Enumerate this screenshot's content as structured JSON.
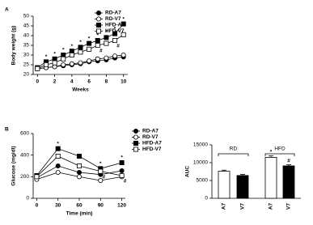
{
  "chart_data": [
    {
      "type": "line",
      "panel": "A",
      "xlabel": "Weeks",
      "ylabel": "Body weight (g)",
      "x": [
        0,
        1,
        2,
        3,
        4,
        5,
        6,
        7,
        8,
        9,
        10
      ],
      "xlim": [
        -0.5,
        10.5
      ],
      "xticks": [
        0,
        2,
        4,
        6,
        8,
        10
      ],
      "ylim": [
        20,
        50
      ],
      "yticks": [
        20,
        25,
        30,
        35,
        40,
        45,
        50
      ],
      "series": [
        {
          "name": "RD-A7",
          "color": "#000000",
          "marker": "circle",
          "filled": true,
          "values": [
            23,
            23.5,
            24,
            24.5,
            25,
            25.5,
            26.5,
            27,
            27.5,
            28.5,
            29
          ]
        },
        {
          "name": "RD-V7",
          "color": "#000000",
          "marker": "circle",
          "filled": false,
          "values": [
            23,
            23.5,
            24,
            25,
            25.5,
            26,
            27,
            28,
            28.5,
            29.5,
            30
          ]
        },
        {
          "name": "HFD-A7",
          "color": "#000000",
          "marker": "square",
          "filled": true,
          "values": [
            23.5,
            26.5,
            28,
            30,
            32,
            34,
            36,
            37.5,
            39,
            41,
            46
          ],
          "annotations": [
            null,
            "*",
            "*",
            "*",
            "*",
            "*",
            "*",
            "*",
            "*",
            "*",
            "*"
          ]
        },
        {
          "name": "HFD-V7",
          "color": "#000000",
          "marker": "square",
          "filled": false,
          "values": [
            23,
            25,
            26,
            28,
            30,
            31.5,
            33,
            35,
            36,
            37.5,
            40.5
          ],
          "annotations": [
            null,
            null,
            null,
            null,
            null,
            null,
            null,
            "#",
            null,
            "#",
            null
          ]
        }
      ]
    },
    {
      "type": "line",
      "panel": "B",
      "xlabel": "Time (min)",
      "ylabel": "Glucose (mg/dl)",
      "x": [
        0,
        30,
        60,
        90,
        120
      ],
      "xlim": [
        -5,
        125
      ],
      "xticks": [
        0,
        30,
        60,
        90,
        120
      ],
      "ylim": [
        0,
        600
      ],
      "yticks": [
        0,
        200,
        400,
        600
      ],
      "series": [
        {
          "name": "RD-A7",
          "color": "#000000",
          "marker": "circle",
          "filled": true,
          "values": [
            190,
            300,
            240,
            220,
            255
          ]
        },
        {
          "name": "RD-V7",
          "color": "#000000",
          "marker": "circle",
          "filled": false,
          "values": [
            175,
            240,
            200,
            165,
            200
          ]
        },
        {
          "name": "HFD-A7",
          "color": "#000000",
          "marker": "square",
          "filled": true,
          "values": [
            210,
            460,
            390,
            275,
            330
          ],
          "annotations": [
            null,
            "*",
            null,
            "*",
            "*"
          ]
        },
        {
          "name": "HFD-V7",
          "color": "#000000",
          "marker": "square",
          "filled": false,
          "values": [
            200,
            390,
            300,
            250,
            210
          ],
          "annotations": [
            null,
            null,
            null,
            "#",
            "#"
          ]
        }
      ]
    },
    {
      "type": "bar",
      "ylabel": "AUC",
      "categories": [
        "A7",
        "V7",
        "A7",
        "V7"
      ],
      "groups": [
        "RD",
        "HFD"
      ],
      "values": [
        7600,
        6400,
        11500,
        9100
      ],
      "errors": [
        300,
        300,
        400,
        300
      ],
      "colors": [
        "#ffffff",
        "#000000",
        "#ffffff",
        "#000000"
      ],
      "annotations": [
        null,
        null,
        "*",
        "#"
      ],
      "ylim": [
        0,
        15000
      ],
      "yticks": [
        0,
        5000,
        10000,
        15000
      ]
    }
  ]
}
